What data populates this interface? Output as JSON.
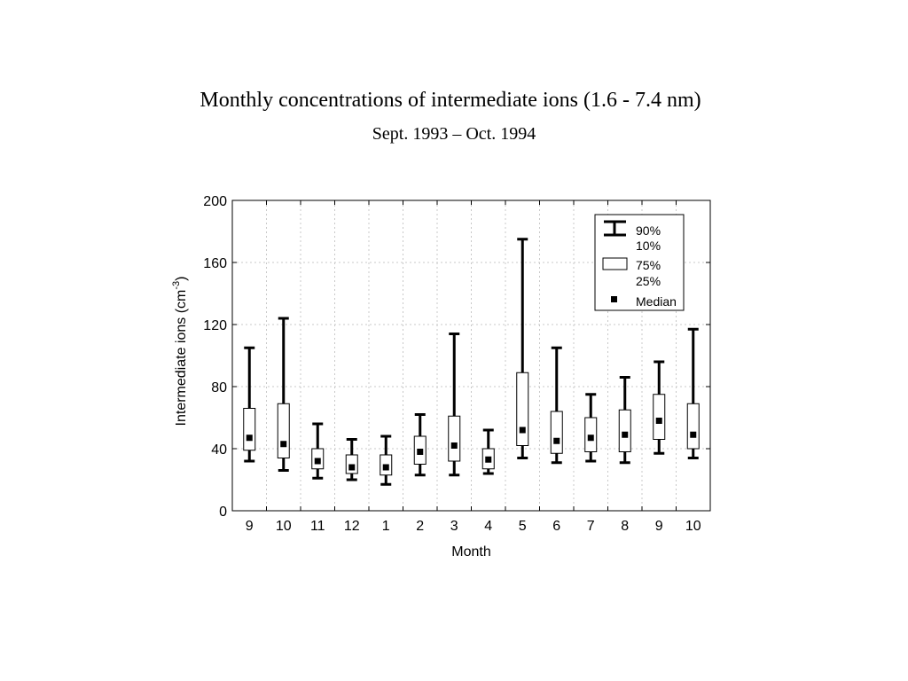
{
  "chart_data": {
    "type": "box",
    "title": "Monthly concentrations of intermediate ions (1.6 - 7.4 nm)",
    "subtitle": "Sept. 1993 – Oct. 1994",
    "xlabel": "Month",
    "ylabel": "Intermediate  ions  (cm",
    "ylabel_sup": "-3",
    "ylabel_close": ")",
    "ylim": [
      0,
      200
    ],
    "yticks": [
      0,
      40,
      80,
      120,
      160,
      200
    ],
    "grid": true,
    "legend_position": "top-right",
    "legend": {
      "whisker": [
        "90%",
        "10%"
      ],
      "box": [
        "75%",
        "25%"
      ],
      "median": "Median"
    },
    "categories": [
      "9",
      "10",
      "11",
      "12",
      "1",
      "2",
      "3",
      "4",
      "5",
      "6",
      "7",
      "8",
      "9",
      "10"
    ],
    "p10": [
      32,
      26,
      21,
      20,
      17,
      23,
      23,
      24,
      34,
      31,
      32,
      31,
      37,
      34
    ],
    "p25": [
      39,
      34,
      27,
      24,
      23,
      30,
      32,
      27,
      42,
      37,
      38,
      38,
      46,
      40
    ],
    "median": [
      47,
      43,
      32,
      28,
      28,
      38,
      42,
      33,
      52,
      45,
      47,
      49,
      58,
      49
    ],
    "p75": [
      66,
      69,
      40,
      36,
      36,
      48,
      61,
      40,
      89,
      64,
      60,
      65,
      75,
      69
    ],
    "p90": [
      105,
      124,
      56,
      46,
      48,
      62,
      114,
      52,
      175,
      105,
      75,
      86,
      96,
      117
    ]
  }
}
